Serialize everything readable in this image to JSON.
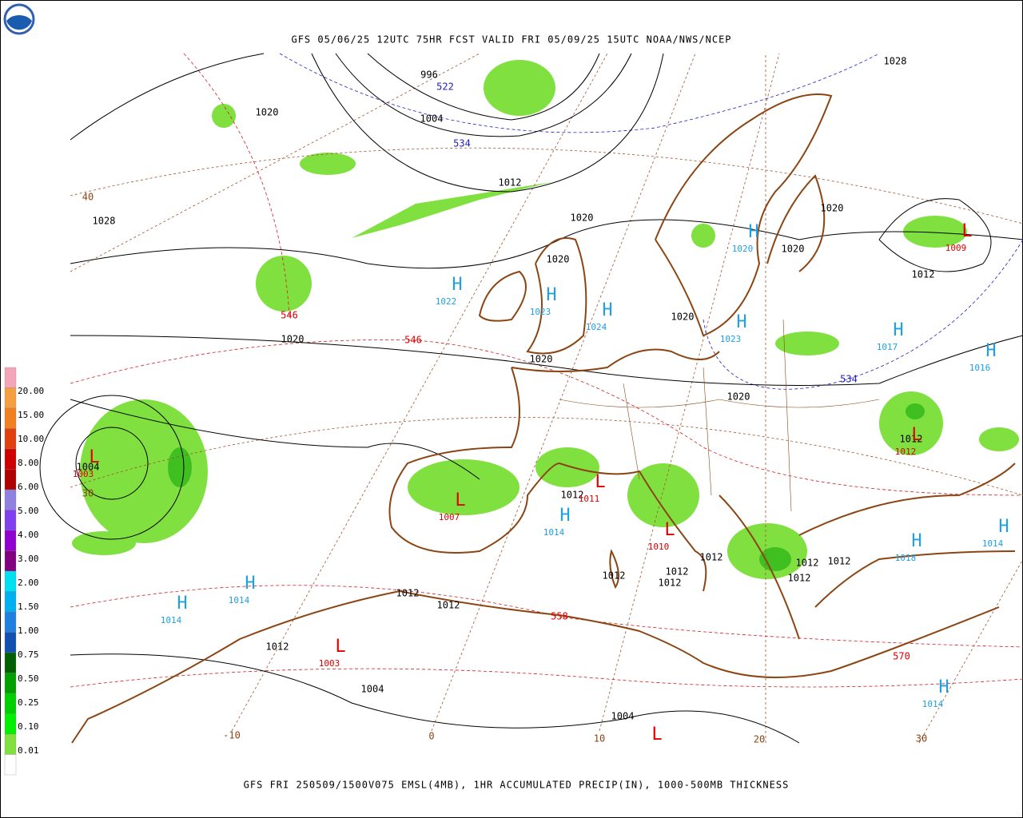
{
  "header": {
    "title": "GFS 05/06/25 12UTC 75HR FCST VALID FRI 05/09/25 15UTC NOAA/NWS/NCEP"
  },
  "footer": {
    "caption": "GFS FRI 250509/1500V075 EMSL(4MB), 1HR ACCUMULATED PRECIP(IN), 1000-500MB THICKNESS"
  },
  "legend": {
    "labels": [
      "20.00",
      "15.00",
      "10.00",
      "8.00",
      "6.00",
      "5.00",
      "4.00",
      "3.00",
      "2.00",
      "1.50",
      "1.00",
      "0.75",
      "0.50",
      "0.25",
      "0.10",
      "0.01"
    ],
    "colors": [
      "#f4a6b8",
      "#f4a040",
      "#f08020",
      "#e04010",
      "#d00000",
      "#b00000",
      "#9080e0",
      "#8040f0",
      "#9000d0",
      "#800080",
      "#00e0f0",
      "#00b0f0",
      "#2080e0",
      "#1050b0",
      "#006000",
      "#00a000",
      "#00d000",
      "#00f000",
      "#80e040",
      "#ffffff"
    ]
  },
  "map": {
    "pressure_labels": [
      "996",
      "1004",
      "1012",
      "1020",
      "1028",
      "1020",
      "1020",
      "1020",
      "1020",
      "1020",
      "1020",
      "1020",
      "1020",
      "1028",
      "1012",
      "1012",
      "1004",
      "1012",
      "1012",
      "1012",
      "1012",
      "1012",
      "1012",
      "1012",
      "1012",
      "1012",
      "1012",
      "1012",
      "1004",
      "1004"
    ],
    "thickness_labels": [
      "522",
      "534",
      "534",
      "546",
      "546",
      "558",
      "570"
    ],
    "highs": [
      {
        "symbol": "H",
        "value": "1022"
      },
      {
        "symbol": "H",
        "value": "1023"
      },
      {
        "symbol": "H",
        "value": "1024"
      },
      {
        "symbol": "H",
        "value": "1020"
      },
      {
        "symbol": "H",
        "value": "1023"
      },
      {
        "symbol": "H",
        "value": "1017"
      },
      {
        "symbol": "H",
        "value": "1016"
      },
      {
        "symbol": "H",
        "value": "1014"
      },
      {
        "symbol": "H",
        "value": "1018"
      },
      {
        "symbol": "H",
        "value": "1014"
      },
      {
        "symbol": "H",
        "value": "1014"
      },
      {
        "symbol": "H",
        "value": "1014"
      },
      {
        "symbol": "H",
        "value": "1014"
      }
    ],
    "lows": [
      {
        "symbol": "L",
        "value": "1009"
      },
      {
        "symbol": "L",
        "value": "1003"
      },
      {
        "symbol": "L",
        "value": "1007"
      },
      {
        "symbol": "L",
        "value": "1011"
      },
      {
        "symbol": "L",
        "value": "1010"
      },
      {
        "symbol": "L",
        "value": "1012"
      },
      {
        "symbol": "L",
        "value": "1003"
      },
      {
        "symbol": "L"
      }
    ],
    "grid_labels": [
      "40",
      "30",
      "-10",
      "0",
      "10",
      "20",
      "30"
    ]
  }
}
